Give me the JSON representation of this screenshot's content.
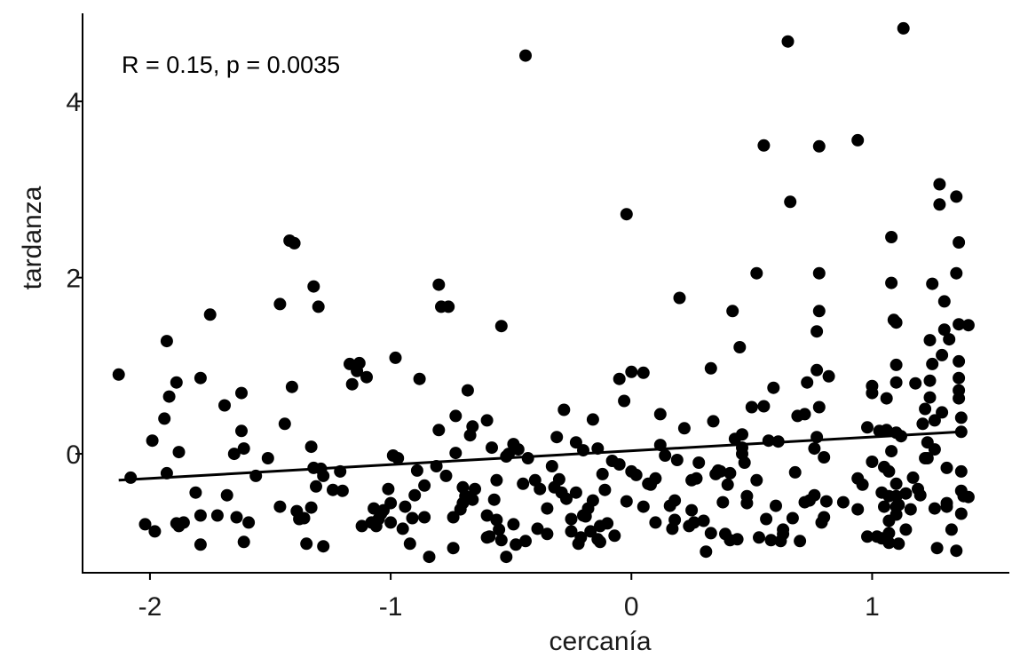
{
  "chart_data": {
    "type": "scatter",
    "xlabel": "cercanía",
    "ylabel": "tardanza",
    "annotation": "R = 0.15, p = 0.0035",
    "xlim": [
      -2.28,
      1.57
    ],
    "ylim": [
      -1.35,
      5.0
    ],
    "x_ticks": [
      -2,
      -1,
      0,
      1
    ],
    "y_ticks": [
      0,
      2,
      4
    ],
    "x_tick_labels": [
      "-2",
      "-1",
      "0",
      "1"
    ],
    "y_tick_labels": [
      "0",
      "2",
      "4"
    ],
    "grid": false,
    "trend_line": {
      "x": [
        -2.13,
        1.37
      ],
      "y": [
        -0.3,
        0.25
      ]
    },
    "points": [
      [
        -2.13,
        0.9
      ],
      [
        -2.08,
        -0.27
      ],
      [
        -2.02,
        -0.8
      ],
      [
        -1.99,
        0.15
      ],
      [
        -1.98,
        -0.88
      ],
      [
        -1.94,
        0.4
      ],
      [
        -1.93,
        1.28
      ],
      [
        -1.93,
        -0.22
      ],
      [
        -1.92,
        0.65
      ],
      [
        -1.89,
        -0.79
      ],
      [
        -1.89,
        0.81
      ],
      [
        -1.88,
        0.02
      ],
      [
        -1.88,
        -0.82
      ],
      [
        -1.86,
        -0.78
      ],
      [
        -1.81,
        -0.44
      ],
      [
        -1.79,
        -0.7
      ],
      [
        -1.79,
        -1.03
      ],
      [
        -1.79,
        0.86
      ],
      [
        -1.75,
        1.58
      ],
      [
        -1.72,
        -0.7
      ],
      [
        -1.69,
        0.55
      ],
      [
        -1.68,
        -0.47
      ],
      [
        -1.65,
        0.0
      ],
      [
        -1.64,
        -0.72
      ],
      [
        -1.62,
        0.26
      ],
      [
        -1.62,
        0.69
      ],
      [
        -1.61,
        0.06
      ],
      [
        -1.61,
        -1.0
      ],
      [
        -1.59,
        -0.78
      ],
      [
        -1.56,
        -0.25
      ],
      [
        -1.51,
        -0.05
      ],
      [
        -1.46,
        1.7
      ],
      [
        -1.46,
        -0.6
      ],
      [
        -1.44,
        0.34
      ],
      [
        -1.42,
        2.42
      ],
      [
        -1.41,
        0.76
      ],
      [
        -1.4,
        2.39
      ],
      [
        -1.39,
        -0.65
      ],
      [
        -1.38,
        -0.74
      ],
      [
        -1.36,
        -0.73
      ],
      [
        -1.35,
        -1.02
      ],
      [
        -1.33,
        -0.61
      ],
      [
        -1.33,
        0.08
      ],
      [
        -1.32,
        1.9
      ],
      [
        -1.32,
        -0.16
      ],
      [
        -1.31,
        -0.37
      ],
      [
        -1.3,
        1.67
      ],
      [
        -1.29,
        -0.17
      ],
      [
        -1.28,
        -1.05
      ],
      [
        -1.28,
        -0.25
      ],
      [
        -1.24,
        -0.41
      ],
      [
        -1.21,
        -0.2
      ],
      [
        -1.2,
        -0.42
      ],
      [
        -1.17,
        1.02
      ],
      [
        -1.16,
        0.79
      ],
      [
        -1.14,
        0.94
      ],
      [
        -1.13,
        1.03
      ],
      [
        -1.12,
        -0.82
      ],
      [
        -1.1,
        0.87
      ],
      [
        -1.08,
        -0.78
      ],
      [
        -1.07,
        -0.62
      ],
      [
        -1.06,
        -0.82
      ],
      [
        -1.05,
        -0.74
      ],
      [
        -1.04,
        -0.68
      ],
      [
        -1.03,
        -0.64
      ],
      [
        -1.01,
        -0.4
      ],
      [
        -1.0,
        -0.78
      ],
      [
        -1.0,
        -0.56
      ],
      [
        -0.99,
        -0.02
      ],
      [
        -0.98,
        1.09
      ],
      [
        -0.97,
        -0.05
      ],
      [
        -0.95,
        -0.85
      ],
      [
        -0.94,
        -0.6
      ],
      [
        -0.92,
        -1.02
      ],
      [
        -0.91,
        -0.73
      ],
      [
        -0.9,
        -0.47
      ],
      [
        -0.89,
        -0.19
      ],
      [
        -0.88,
        0.85
      ],
      [
        -0.86,
        -0.72
      ],
      [
        -0.86,
        -0.36
      ],
      [
        -0.84,
        -1.17
      ],
      [
        -0.81,
        -0.14
      ],
      [
        -0.8,
        1.92
      ],
      [
        -0.8,
        0.27
      ],
      [
        -0.79,
        1.67
      ],
      [
        -0.77,
        -0.25
      ],
      [
        -0.76,
        1.67
      ],
      [
        -0.74,
        -0.72
      ],
      [
        -0.74,
        -1.07
      ],
      [
        -0.73,
        0.01
      ],
      [
        -0.73,
        0.43
      ],
      [
        -0.71,
        -0.63
      ],
      [
        -0.7,
        -0.56
      ],
      [
        -0.7,
        -0.38
      ],
      [
        -0.69,
        -0.48
      ],
      [
        -0.68,
        0.72
      ],
      [
        -0.67,
        0.21
      ],
      [
        -0.66,
        0.31
      ],
      [
        -0.66,
        -0.52
      ],
      [
        -0.65,
        -0.4
      ],
      [
        -0.6,
        0.38
      ],
      [
        -0.6,
        -0.7
      ],
      [
        -0.6,
        -0.95
      ],
      [
        -0.59,
        -0.94
      ],
      [
        -0.58,
        0.07
      ],
      [
        -0.57,
        -0.52
      ],
      [
        -0.56,
        -0.75
      ],
      [
        -0.56,
        -0.3
      ],
      [
        -0.55,
        -0.86
      ],
      [
        -0.54,
        -0.98
      ],
      [
        -0.54,
        1.45
      ],
      [
        -0.52,
        -1.17
      ],
      [
        -0.52,
        -0.03
      ],
      [
        -0.51,
        0.0
      ],
      [
        -0.49,
        -0.8
      ],
      [
        -0.49,
        0.11
      ],
      [
        -0.48,
        -1.03
      ],
      [
        -0.47,
        0.05
      ],
      [
        -0.45,
        -0.34
      ],
      [
        -0.44,
        4.52
      ],
      [
        -0.44,
        -0.99
      ],
      [
        -0.43,
        -0.05
      ],
      [
        -0.4,
        -0.3
      ],
      [
        -0.39,
        -0.85
      ],
      [
        -0.38,
        -0.4
      ],
      [
        -0.35,
        -0.62
      ],
      [
        -0.35,
        -0.91
      ],
      [
        -0.33,
        -0.14
      ],
      [
        -0.32,
        -0.38
      ],
      [
        -0.31,
        0.19
      ],
      [
        -0.3,
        -0.29
      ],
      [
        -0.29,
        -0.44
      ],
      [
        -0.28,
        0.5
      ],
      [
        -0.27,
        -0.51
      ],
      [
        -0.25,
        -0.88
      ],
      [
        -0.25,
        -0.74
      ],
      [
        -0.23,
        -0.44
      ],
      [
        -0.23,
        0.13
      ],
      [
        -0.22,
        -1.02
      ],
      [
        -0.21,
        -0.95
      ],
      [
        -0.2,
        -0.7
      ],
      [
        -0.2,
        0.04
      ],
      [
        -0.19,
        -0.71
      ],
      [
        -0.18,
        -0.62
      ],
      [
        -0.17,
        -0.88
      ],
      [
        -0.16,
        0.39
      ],
      [
        -0.16,
        -0.53
      ],
      [
        -0.14,
        -0.97
      ],
      [
        -0.14,
        0.06
      ],
      [
        -0.13,
        -0.82
      ],
      [
        -0.13,
        -1.0
      ],
      [
        -0.12,
        -0.23
      ],
      [
        -0.11,
        -0.41
      ],
      [
        -0.1,
        -0.79
      ],
      [
        -0.08,
        -0.08
      ],
      [
        -0.07,
        -0.93
      ],
      [
        -0.05,
        0.85
      ],
      [
        -0.05,
        -0.12
      ],
      [
        -0.03,
        0.6
      ],
      [
        0.0,
        -0.2
      ],
      [
        -0.02,
        2.72
      ],
      [
        -0.02,
        -0.54
      ],
      [
        0.0,
        0.93
      ],
      [
        0.02,
        -0.24
      ],
      [
        0.05,
        0.92
      ],
      [
        0.07,
        -0.34
      ],
      [
        0.08,
        -0.35
      ],
      [
        0.1,
        -0.28
      ],
      [
        0.1,
        -0.78
      ],
      [
        0.12,
        0.45
      ],
      [
        0.14,
        -0.02
      ],
      [
        0.16,
        -0.59
      ],
      [
        0.17,
        -0.85
      ],
      [
        0.18,
        -0.53
      ],
      [
        0.18,
        -0.75
      ],
      [
        0.19,
        -0.07
      ],
      [
        0.2,
        1.77
      ],
      [
        0.22,
        0.29
      ],
      [
        0.24,
        -0.82
      ],
      [
        0.25,
        -0.3
      ],
      [
        0.25,
        -0.64
      ],
      [
        0.26,
        -0.78
      ],
      [
        0.27,
        -0.28
      ],
      [
        0.3,
        -0.76
      ],
      [
        0.31,
        -1.11
      ],
      [
        0.33,
        -0.9
      ],
      [
        0.33,
        0.97
      ],
      [
        0.34,
        0.37
      ],
      [
        0.35,
        -0.23
      ],
      [
        0.36,
        -0.19
      ],
      [
        0.37,
        -0.2
      ],
      [
        0.39,
        -0.91
      ],
      [
        0.4,
        -0.35
      ],
      [
        0.41,
        -0.22
      ],
      [
        0.41,
        -0.98
      ],
      [
        0.42,
        1.62
      ],
      [
        0.43,
        0.17
      ],
      [
        0.44,
        -0.97
      ],
      [
        0.45,
        1.21
      ],
      [
        0.46,
        0.0
      ],
      [
        0.46,
        0.07
      ],
      [
        0.46,
        0.22
      ],
      [
        0.47,
        -0.1
      ],
      [
        0.48,
        -0.56
      ],
      [
        0.48,
        -0.48
      ],
      [
        0.5,
        0.53
      ],
      [
        0.52,
        2.05
      ],
      [
        0.53,
        -0.95
      ],
      [
        0.55,
        0.54
      ],
      [
        0.55,
        3.5
      ],
      [
        0.56,
        -0.74
      ],
      [
        0.57,
        0.15
      ],
      [
        0.58,
        -0.98
      ],
      [
        0.59,
        0.75
      ],
      [
        0.6,
        -0.59
      ],
      [
        0.61,
        0.14
      ],
      [
        0.62,
        -0.99
      ],
      [
        0.63,
        -0.91
      ],
      [
        0.63,
        -0.86
      ],
      [
        0.65,
        4.68
      ],
      [
        0.66,
        2.86
      ],
      [
        0.67,
        -0.73
      ],
      [
        0.68,
        -0.21
      ],
      [
        0.69,
        0.43
      ],
      [
        0.7,
        -0.99
      ],
      [
        0.72,
        -0.55
      ],
      [
        0.73,
        0.81
      ],
      [
        0.74,
        -0.53
      ],
      [
        0.76,
        0.06
      ],
      [
        0.76,
        -0.47
      ],
      [
        0.77,
        0.95
      ],
      [
        0.77,
        0.19
      ],
      [
        0.77,
        1.39
      ],
      [
        0.78,
        0.53
      ],
      [
        0.78,
        3.49
      ],
      [
        0.78,
        2.05
      ],
      [
        0.78,
        1.62
      ],
      [
        0.79,
        -0.78
      ],
      [
        0.8,
        -0.72
      ],
      [
        0.8,
        -0.04
      ],
      [
        0.81,
        -0.54
      ],
      [
        0.82,
        0.88
      ],
      [
        0.94,
        3.56
      ],
      [
        0.94,
        -0.28
      ],
      [
        0.94,
        -0.63
      ],
      [
        0.96,
        -0.35
      ],
      [
        0.98,
        -0.94
      ],
      [
        1.0,
        -0.09
      ],
      [
        1.0,
        0.77
      ],
      [
        1.0,
        0.69
      ],
      [
        1.02,
        -0.94
      ],
      [
        1.03,
        0.26
      ],
      [
        1.04,
        -0.96
      ],
      [
        1.04,
        -0.44
      ],
      [
        1.05,
        -0.6
      ],
      [
        1.06,
        0.63
      ],
      [
        1.06,
        0.27
      ],
      [
        1.07,
        -0.2
      ],
      [
        1.07,
        -0.48
      ],
      [
        1.07,
        -0.76
      ],
      [
        1.07,
        -0.9
      ],
      [
        1.07,
        -1.01
      ],
      [
        1.08,
        1.94
      ],
      [
        1.08,
        2.46
      ],
      [
        1.08,
        0.03
      ],
      [
        1.09,
        1.52
      ],
      [
        1.1,
        1.49
      ],
      [
        1.1,
        -0.34
      ],
      [
        1.1,
        -0.48
      ],
      [
        1.1,
        -0.6
      ],
      [
        1.1,
        -0.69
      ],
      [
        1.1,
        0.24
      ],
      [
        1.1,
        0.81
      ],
      [
        1.1,
        1.01
      ],
      [
        1.11,
        -0.58
      ],
      [
        1.11,
        -1.02
      ],
      [
        1.12,
        0.2
      ],
      [
        1.13,
        4.83
      ],
      [
        1.14,
        -0.86
      ],
      [
        1.16,
        -0.63
      ],
      [
        1.17,
        -0.27
      ],
      [
        1.18,
        0.8
      ],
      [
        1.19,
        -0.4
      ],
      [
        1.2,
        -0.47
      ],
      [
        1.21,
        0.34
      ],
      [
        1.22,
        0.51
      ],
      [
        1.22,
        -0.05
      ],
      [
        1.23,
        0.13
      ],
      [
        1.23,
        -0.05
      ],
      [
        1.24,
        1.29
      ],
      [
        1.24,
        0.64
      ],
      [
        1.24,
        0.83
      ],
      [
        1.25,
        1.02
      ],
      [
        1.25,
        1.93
      ],
      [
        1.26,
        -0.62
      ],
      [
        1.26,
        0.38
      ],
      [
        1.27,
        -1.07
      ],
      [
        1.28,
        3.06
      ],
      [
        1.28,
        2.83
      ],
      [
        1.29,
        0.47
      ],
      [
        1.29,
        1.12
      ],
      [
        1.3,
        1.73
      ],
      [
        1.3,
        1.41
      ],
      [
        1.31,
        -0.16
      ],
      [
        1.31,
        -0.6
      ],
      [
        1.31,
        -0.56
      ],
      [
        1.32,
        1.3
      ],
      [
        1.33,
        -0.86
      ],
      [
        1.35,
        -1.1
      ],
      [
        1.35,
        2.92
      ],
      [
        1.35,
        2.05
      ],
      [
        1.36,
        1.47
      ],
      [
        1.36,
        2.4
      ],
      [
        1.36,
        1.05
      ],
      [
        1.36,
        0.86
      ],
      [
        1.36,
        0.72
      ],
      [
        1.36,
        0.63
      ],
      [
        1.37,
        0.41
      ],
      [
        1.37,
        0.25
      ],
      [
        1.37,
        -0.2
      ],
      [
        1.37,
        -0.42
      ],
      [
        1.37,
        -0.68
      ],
      [
        1.38,
        -0.48
      ],
      [
        1.4,
        1.46
      ],
      [
        1.4,
        -0.49
      ],
      [
        1.26,
        0.05
      ],
      [
        1.14,
        -0.45
      ],
      [
        1.05,
        -0.15
      ],
      [
        0.98,
        0.3
      ],
      [
        0.88,
        -0.55
      ],
      [
        0.72,
        0.45
      ],
      [
        0.52,
        -0.3
      ],
      [
        0.38,
        -0.55
      ],
      [
        0.28,
        -0.1
      ],
      [
        0.12,
        0.1
      ],
      [
        0.05,
        -0.6
      ]
    ]
  }
}
